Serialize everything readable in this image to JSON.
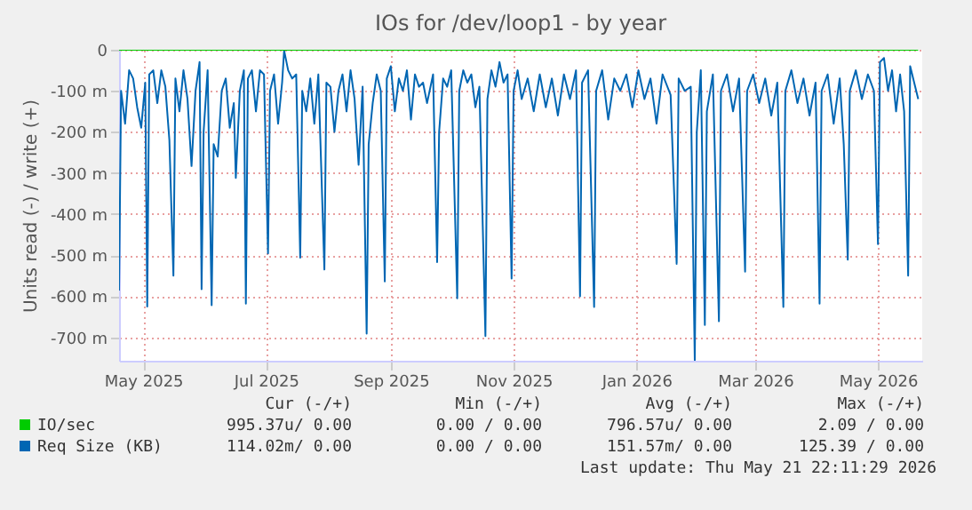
{
  "chart_data": {
    "type": "line",
    "title": "IOs for /dev/loop1 - by year",
    "ylabel": "Units read (-) / write (+)",
    "xlim": [
      "2025-04-19",
      "2026-05-23"
    ],
    "xticks": [
      {
        "value": "2025-05-01",
        "label": "May 2025"
      },
      {
        "value": "2025-07-01",
        "label": "Jul 2025"
      },
      {
        "value": "2025-09-01",
        "label": "Sep 2025"
      },
      {
        "value": "2025-11-01",
        "label": "Nov 2025"
      },
      {
        "value": "2026-01-01",
        "label": "Jan 2026"
      },
      {
        "value": "2026-03-01",
        "label": "Mar 2026"
      },
      {
        "value": "2026-05-01",
        "label": "May 2026"
      }
    ],
    "ylim": [
      -757,
      0
    ],
    "yticks": [
      0,
      {
        "value": -100,
        "label": "-100 m"
      },
      {
        "value": -200,
        "label": "-200 m"
      },
      {
        "value": -300,
        "label": "-300 m"
      },
      {
        "value": -400,
        "label": "-400 m"
      },
      {
        "value": -500,
        "label": "-500 m"
      },
      {
        "value": -600,
        "label": "-600 m"
      },
      {
        "value": -700,
        "label": "-700 m"
      }
    ],
    "grid": true,
    "legend": "bottom",
    "line_style": "solid",
    "series": [
      {
        "name": "IO/sec",
        "color": "#00cc00",
        "x": [
          "2025-04-19",
          "2026-05-21"
        ],
        "values": [
          0,
          0
        ]
      },
      {
        "name": "Req Size (KB)",
        "color": "#0066b3",
        "x": [
          "2025-04-19",
          "2025-04-20",
          "2025-04-22",
          "2025-04-24",
          "2025-04-26",
          "2025-04-28",
          "2025-04-30",
          "2025-05-02",
          "2025-05-03",
          "2025-05-04",
          "2025-05-06",
          "2025-05-08",
          "2025-05-10",
          "2025-05-12",
          "2025-05-14",
          "2025-05-16",
          "2025-05-17",
          "2025-05-19",
          "2025-05-21",
          "2025-05-23",
          "2025-05-25",
          "2025-05-27",
          "2025-05-29",
          "2025-05-30",
          "2025-05-31",
          "2025-06-02",
          "2025-06-04",
          "2025-06-05",
          "2025-06-07",
          "2025-06-09",
          "2025-06-11",
          "2025-06-13",
          "2025-06-15",
          "2025-06-16",
          "2025-06-18",
          "2025-06-20",
          "2025-06-21",
          "2025-06-22",
          "2025-06-24",
          "2025-06-26",
          "2025-06-28",
          "2025-06-30",
          "2025-07-02",
          "2025-07-03",
          "2025-07-05",
          "2025-07-07",
          "2025-07-09",
          "2025-07-10",
          "2025-07-12",
          "2025-07-14",
          "2025-07-16",
          "2025-07-18",
          "2025-07-19",
          "2025-07-21",
          "2025-07-23",
          "2025-07-25",
          "2025-07-27",
          "2025-07-30",
          "2025-07-31",
          "2025-08-02",
          "2025-08-04",
          "2025-08-06",
          "2025-08-08",
          "2025-08-10",
          "2025-08-12",
          "2025-08-14",
          "2025-08-16",
          "2025-08-18",
          "2025-08-20",
          "2025-08-21",
          "2025-08-23",
          "2025-08-25",
          "2025-08-27",
          "2025-08-29",
          "2025-08-30",
          "2025-09-01",
          "2025-09-03",
          "2025-09-05",
          "2025-09-07",
          "2025-09-09",
          "2025-09-11",
          "2025-09-13",
          "2025-09-15",
          "2025-09-17",
          "2025-09-19",
          "2025-09-22",
          "2025-09-24",
          "2025-09-25",
          "2025-09-27",
          "2025-09-29",
          "2025-10-01",
          "2025-10-04",
          "2025-10-05",
          "2025-10-07",
          "2025-10-09",
          "2025-10-11",
          "2025-10-13",
          "2025-10-15",
          "2025-10-18",
          "2025-10-19",
          "2025-10-21",
          "2025-10-23",
          "2025-10-25",
          "2025-10-27",
          "2025-10-29",
          "2025-10-31",
          "2025-11-01",
          "2025-11-03",
          "2025-11-05",
          "2025-11-08",
          "2025-11-11",
          "2025-11-14",
          "2025-11-17",
          "2025-11-20",
          "2025-11-23",
          "2025-11-26",
          "2025-11-29",
          "2025-12-02",
          "2025-12-04",
          "2025-12-05",
          "2025-12-08",
          "2025-12-11",
          "2025-12-12",
          "2025-12-15",
          "2025-12-18",
          "2025-12-21",
          "2025-12-24",
          "2025-12-27",
          "2025-12-30",
          "2026-01-02",
          "2026-01-05",
          "2026-01-08",
          "2026-01-11",
          "2026-01-14",
          "2026-01-18",
          "2026-01-21",
          "2026-01-22",
          "2026-01-25",
          "2026-01-28",
          "2026-01-30",
          "2026-01-31",
          "2026-02-02",
          "2026-02-04",
          "2026-02-05",
          "2026-02-08",
          "2026-02-11",
          "2026-02-12",
          "2026-02-15",
          "2026-02-18",
          "2026-02-21",
          "2026-02-24",
          "2026-02-25",
          "2026-02-28",
          "2026-03-03",
          "2026-03-06",
          "2026-03-09",
          "2026-03-12",
          "2026-03-15",
          "2026-03-16",
          "2026-03-19",
          "2026-03-22",
          "2026-03-25",
          "2026-03-28",
          "2026-03-31",
          "2026-04-02",
          "2026-04-03",
          "2026-04-06",
          "2026-04-09",
          "2026-04-12",
          "2026-04-14",
          "2026-04-16",
          "2026-04-17",
          "2026-04-20",
          "2026-04-23",
          "2026-04-26",
          "2026-04-29",
          "2026-05-01",
          "2026-05-02",
          "2026-05-04",
          "2026-05-06",
          "2026-05-08",
          "2026-05-10",
          "2026-05-12",
          "2026-05-14",
          "2026-05-16",
          "2026-05-17",
          "2026-05-19",
          "2026-05-21"
        ],
        "values": [
          -586,
          -100,
          -180,
          -50,
          -70,
          -140,
          -190,
          -80,
          -625,
          -60,
          -50,
          -130,
          -50,
          -90,
          -220,
          -550,
          -70,
          -150,
          -50,
          -120,
          -283,
          -100,
          -30,
          -583,
          -200,
          -50,
          -622,
          -230,
          -260,
          -100,
          -70,
          -190,
          -130,
          -312,
          -100,
          -50,
          -618,
          -70,
          -50,
          -150,
          -50,
          -60,
          -496,
          -100,
          -60,
          -180,
          -80,
          -2,
          -50,
          -70,
          -60,
          -506,
          -100,
          -150,
          -70,
          -180,
          -60,
          -535,
          -80,
          -90,
          -200,
          -100,
          -60,
          -150,
          -50,
          -120,
          -280,
          -90,
          -691,
          -230,
          -130,
          -60,
          -100,
          -564,
          -70,
          -40,
          -150,
          -70,
          -100,
          -50,
          -170,
          -60,
          -90,
          -80,
          -130,
          -60,
          -517,
          -200,
          -70,
          -90,
          -50,
          -605,
          -100,
          -50,
          -80,
          -60,
          -140,
          -90,
          -697,
          -120,
          -50,
          -90,
          -30,
          -80,
          -60,
          -557,
          -100,
          -50,
          -120,
          -70,
          -150,
          -60,
          -140,
          -70,
          -160,
          -60,
          -120,
          -50,
          -600,
          -80,
          -50,
          -626,
          -100,
          -50,
          -170,
          -70,
          -100,
          -60,
          -140,
          -50,
          -120,
          -70,
          -180,
          -60,
          -110,
          -521,
          -70,
          -100,
          -90,
          -756,
          -200,
          -50,
          -670,
          -150,
          -60,
          -661,
          -100,
          -60,
          -150,
          -70,
          -540,
          -100,
          -60,
          -130,
          -70,
          -160,
          -80,
          -626,
          -100,
          -50,
          -130,
          -70,
          -160,
          -80,
          -618,
          -100,
          -60,
          -180,
          -70,
          -230,
          -511,
          -100,
          -50,
          -120,
          -60,
          -100,
          -473,
          -30,
          -20,
          -100,
          -50,
          -150,
          -60,
          -150,
          -550,
          -40,
          -80,
          -120
        ]
      }
    ],
    "annotations": [
      "Cur (-/+)",
      "Min (-/+)",
      "Avg (-/+)",
      "Max (-/+)",
      "995.37u/  0.00",
      "0.00 /  0.00",
      "796.57u/  0.00",
      "2.09 /  0.00",
      "114.02m/  0.00",
      "0.00 /  0.00",
      "151.57m/  0.00",
      "125.39 /  0.00",
      "Last update: Thu May 21 22:11:29 2026"
    ]
  }
}
